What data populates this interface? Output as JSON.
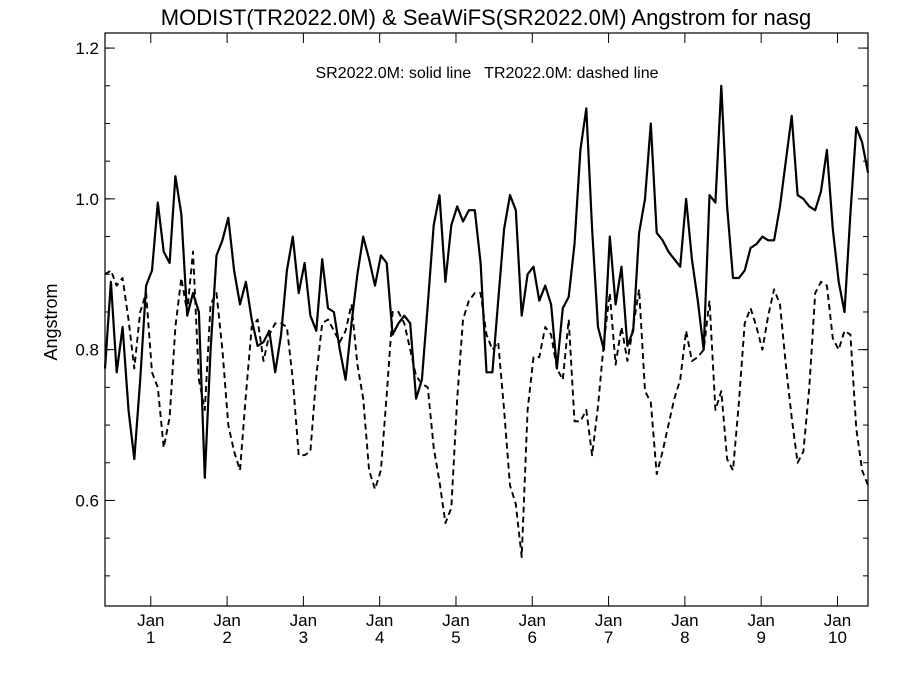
{
  "chart_data": {
    "type": "line",
    "title": "MODIST(TR2022.0M) & SeaWiFS(SR2022.0M)  Angstrom for nasg",
    "ylabel": "Angstrom",
    "xlabel": "",
    "annotation": "SR2022.0M: solid line   TR2022.0M: dashed line",
    "ylim": [
      0.46,
      1.22
    ],
    "xlim": [
      0,
      131
    ],
    "yticks": [
      0.6,
      0.8,
      1.0,
      1.2
    ],
    "ytick_labels": [
      "0.6",
      "0.8",
      "1.0",
      "1.2"
    ],
    "xticks": [
      {
        "pos": 0.6,
        "label": "Jan",
        "sub": "1"
      },
      {
        "pos": 1.6,
        "label": "Jan",
        "sub": "2"
      },
      {
        "pos": 2.6,
        "label": "Jan",
        "sub": "3"
      },
      {
        "pos": 3.6,
        "label": "Jan",
        "sub": "4"
      },
      {
        "pos": 4.6,
        "label": "Jan",
        "sub": "5"
      },
      {
        "pos": 5.6,
        "label": "Jan",
        "sub": "6"
      },
      {
        "pos": 6.6,
        "label": "Jan",
        "sub": "7"
      },
      {
        "pos": 7.6,
        "label": "Jan",
        "sub": "8"
      },
      {
        "pos": 8.6,
        "label": "Jan",
        "sub": "9"
      },
      {
        "pos": 9.6,
        "label": "Jan",
        "sub": "10"
      }
    ],
    "grid": false,
    "series": [
      {
        "style": "solid",
        "values": [
          0.775,
          0.89,
          0.77,
          0.83,
          0.72,
          0.655,
          0.76,
          0.885,
          0.905,
          0.995,
          0.93,
          0.915,
          1.03,
          0.98,
          0.845,
          0.875,
          0.85,
          0.63,
          0.8,
          0.925,
          0.945,
          0.975,
          0.905,
          0.86,
          0.89,
          0.84,
          0.805,
          0.81,
          0.825,
          0.77,
          0.82,
          0.905,
          0.95,
          0.875,
          0.915,
          0.845,
          0.825,
          0.92,
          0.855,
          0.85,
          0.8,
          0.76,
          0.835,
          0.9,
          0.95,
          0.92,
          0.885,
          0.925,
          0.915,
          0.82,
          0.835,
          0.845,
          0.835,
          0.735,
          0.76,
          0.86,
          0.965,
          1.005,
          0.89,
          0.965,
          0.99,
          0.97,
          0.985,
          0.985,
          0.915,
          0.77,
          0.77,
          0.865,
          0.96,
          1.005,
          0.985,
          0.845,
          0.9,
          0.91,
          0.865,
          0.885,
          0.86,
          0.775,
          0.855,
          0.87,
          0.94,
          1.065,
          1.12,
          0.96,
          0.83,
          0.8,
          0.95,
          0.86,
          0.91,
          0.805,
          0.825,
          0.955,
          1.0,
          1.1,
          0.955,
          0.945,
          0.93,
          0.92,
          0.91,
          1.0,
          0.92,
          0.865,
          0.8,
          1.005,
          0.995,
          1.15,
          0.99,
          0.895,
          0.895,
          0.905,
          0.935,
          0.94,
          0.95,
          0.945,
          0.945,
          0.99,
          1.05,
          1.11,
          1.005,
          1.0,
          0.99,
          0.985,
          1.01,
          1.065,
          0.96,
          0.89,
          0.85,
          0.98,
          1.095,
          1.075,
          1.035
        ]
      },
      {
        "style": "dashed",
        "values": [
          0.9,
          0.905,
          0.885,
          0.895,
          0.84,
          0.775,
          0.85,
          0.875,
          0.77,
          0.75,
          0.67,
          0.71,
          0.83,
          0.895,
          0.85,
          0.93,
          0.76,
          0.72,
          0.86,
          0.875,
          0.8,
          0.7,
          0.665,
          0.64,
          0.74,
          0.83,
          0.84,
          0.785,
          0.82,
          0.835,
          0.835,
          0.83,
          0.76,
          0.66,
          0.66,
          0.665,
          0.765,
          0.835,
          0.84,
          0.825,
          0.81,
          0.825,
          0.86,
          0.78,
          0.735,
          0.64,
          0.615,
          0.64,
          0.74,
          0.85,
          0.85,
          0.835,
          0.8,
          0.765,
          0.755,
          0.75,
          0.67,
          0.625,
          0.57,
          0.59,
          0.735,
          0.84,
          0.865,
          0.875,
          0.875,
          0.82,
          0.8,
          0.81,
          0.72,
          0.62,
          0.595,
          0.525,
          0.72,
          0.79,
          0.79,
          0.83,
          0.82,
          0.775,
          0.76,
          0.84,
          0.705,
          0.705,
          0.72,
          0.66,
          0.725,
          0.81,
          0.875,
          0.78,
          0.83,
          0.785,
          0.83,
          0.88,
          0.745,
          0.73,
          0.635,
          0.665,
          0.7,
          0.735,
          0.76,
          0.825,
          0.785,
          0.79,
          0.8,
          0.865,
          0.72,
          0.745,
          0.655,
          0.64,
          0.73,
          0.835,
          0.855,
          0.83,
          0.8,
          0.845,
          0.88,
          0.86,
          0.78,
          0.71,
          0.65,
          0.665,
          0.75,
          0.875,
          0.89,
          0.885,
          0.815,
          0.8,
          0.825,
          0.82,
          0.695,
          0.64,
          0.62
        ]
      }
    ]
  }
}
